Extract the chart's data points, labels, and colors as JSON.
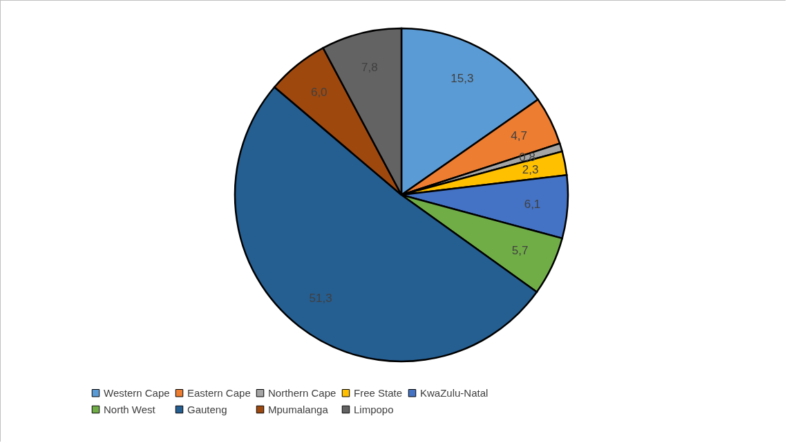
{
  "chart_data": {
    "type": "pie",
    "categories": [
      "Western Cape",
      "Eastern Cape",
      "Northern Cape",
      "Free State",
      "KwaZulu-Natal",
      "North West",
      "Gauteng",
      "Mpumalanga",
      "Limpopo"
    ],
    "values": [
      15.3,
      4.7,
      0.8,
      2.3,
      6.1,
      5.7,
      51.3,
      6.0,
      7.8
    ],
    "value_labels": [
      "15,3",
      "4,7",
      "0,8",
      "2,3",
      "6,1",
      "5,7",
      "51,3",
      "6,0",
      "7,8"
    ],
    "colors": [
      "#5b9bd5",
      "#ed7d31",
      "#a5a5a5",
      "#ffc000",
      "#4472c4",
      "#70ad47",
      "#255e91",
      "#9e480e",
      "#636363"
    ],
    "legend": "bottom"
  }
}
